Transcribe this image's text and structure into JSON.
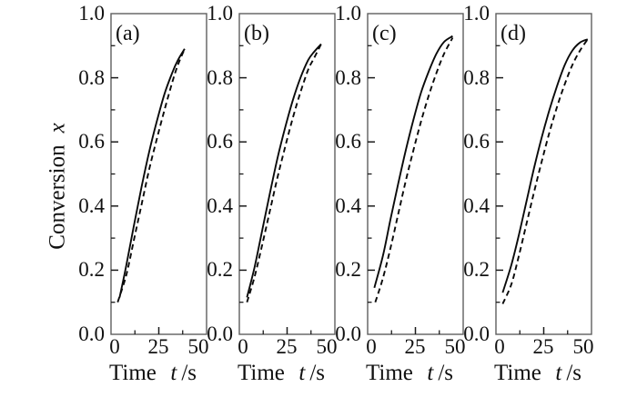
{
  "figure": {
    "ylabel": {
      "text": "Conversion",
      "symbol": "x"
    },
    "xlabel": {
      "text": "Time",
      "symbol": "t",
      "unit": "/s"
    },
    "colors": {
      "curve": "#0a0a0a",
      "spine": "#5f5f5f",
      "tick": "#1a1a1a",
      "text": "#111111",
      "background": "#ffffff"
    }
  },
  "chart_data": [
    {
      "type": "line",
      "label": "(a)",
      "xlabel": "Time t /s",
      "ylabel": "Conversion x",
      "xlim": [
        0,
        50
      ],
      "ylim": [
        0.0,
        1.0
      ],
      "grid": false,
      "legend": "none",
      "x_tick_labels": [
        "0",
        "25",
        "50"
      ],
      "x_major_ticks": [
        0,
        25,
        50
      ],
      "x_minor_ticks": [
        12.5,
        37.5
      ],
      "y_tick_labels": [
        "1.0",
        "0.8",
        "0.6",
        "0.4",
        "0.2",
        "0.0"
      ],
      "y_major_ticks": [
        1.0,
        0.8,
        0.6,
        0.4,
        0.2,
        0.0
      ],
      "y_minor_ticks": [
        0.1,
        0.3,
        0.5,
        0.7,
        0.9
      ],
      "series": [
        {
          "name": "solid",
          "style": "solid",
          "points": [
            [
              4.5,
              0.115
            ],
            [
              8,
              0.215
            ],
            [
              12,
              0.34
            ],
            [
              16,
              0.46
            ],
            [
              20,
              0.57
            ],
            [
              24,
              0.665
            ],
            [
              28,
              0.75
            ],
            [
              32,
              0.815
            ],
            [
              35,
              0.855
            ],
            [
              38.5,
              0.89
            ]
          ]
        },
        {
          "name": "dashed",
          "style": "dashed",
          "points": [
            [
              3.5,
              0.1
            ],
            [
              8,
              0.185
            ],
            [
              12,
              0.295
            ],
            [
              16,
              0.405
            ],
            [
              20,
              0.515
            ],
            [
              24,
              0.61
            ],
            [
              28,
              0.7
            ],
            [
              32,
              0.785
            ],
            [
              35,
              0.84
            ],
            [
              38.5,
              0.89
            ]
          ]
        }
      ]
    },
    {
      "type": "line",
      "label": "(b)",
      "xlabel": "Time t /s",
      "ylabel": "Conversion x",
      "xlim": [
        0,
        50
      ],
      "ylim": [
        0.0,
        1.0
      ],
      "grid": false,
      "legend": "none",
      "x_tick_labels": [
        "0",
        "25",
        "50"
      ],
      "x_major_ticks": [
        0,
        25,
        50
      ],
      "x_minor_ticks": [
        12.5,
        37.5
      ],
      "y_tick_labels": [
        "1.0",
        "0.8",
        "0.6",
        "0.4",
        "0.2",
        "0.0"
      ],
      "y_major_ticks": [
        1.0,
        0.8,
        0.6,
        0.4,
        0.2,
        0.0
      ],
      "y_minor_ticks": [
        0.1,
        0.3,
        0.5,
        0.7,
        0.9
      ],
      "series": [
        {
          "name": "solid",
          "style": "solid",
          "points": [
            [
              4,
              0.115
            ],
            [
              8,
              0.21
            ],
            [
              12,
              0.325
            ],
            [
              16,
              0.44
            ],
            [
              20,
              0.55
            ],
            [
              24,
              0.645
            ],
            [
              28,
              0.73
            ],
            [
              32,
              0.8
            ],
            [
              36,
              0.855
            ],
            [
              39,
              0.88
            ],
            [
              42.8,
              0.905
            ]
          ]
        },
        {
          "name": "dashed",
          "style": "dashed",
          "points": [
            [
              4,
              0.1
            ],
            [
              8,
              0.18
            ],
            [
              12,
              0.28
            ],
            [
              16,
              0.385
            ],
            [
              20,
              0.49
            ],
            [
              24,
              0.585
            ],
            [
              28,
              0.675
            ],
            [
              32,
              0.755
            ],
            [
              36,
              0.825
            ],
            [
              39,
              0.86
            ],
            [
              42.8,
              0.905
            ]
          ]
        }
      ]
    },
    {
      "type": "line",
      "label": "(c)",
      "xlabel": "Time t /s",
      "ylabel": "Conversion x",
      "xlim": [
        0,
        50
      ],
      "ylim": [
        0.0,
        1.0
      ],
      "grid": false,
      "legend": "none",
      "x_tick_labels": [
        "0",
        "25",
        "50"
      ],
      "x_major_ticks": [
        0,
        25,
        50
      ],
      "x_minor_ticks": [
        12.5,
        37.5
      ],
      "y_tick_labels": [
        "1.0",
        "0.8",
        "0.6",
        "0.4",
        "0.2",
        "0.0"
      ],
      "y_major_ticks": [
        1.0,
        0.8,
        0.6,
        0.4,
        0.2,
        0.0
      ],
      "y_minor_ticks": [
        0.1,
        0.3,
        0.5,
        0.7,
        0.9
      ],
      "series": [
        {
          "name": "solid",
          "style": "solid",
          "points": [
            [
              3.5,
              0.145
            ],
            [
              8,
              0.245
            ],
            [
              12,
              0.36
            ],
            [
              16,
              0.47
            ],
            [
              20,
              0.575
            ],
            [
              24,
              0.67
            ],
            [
              28,
              0.755
            ],
            [
              32,
              0.82
            ],
            [
              36,
              0.875
            ],
            [
              40,
              0.912
            ],
            [
              44.5,
              0.93
            ]
          ]
        },
        {
          "name": "dashed",
          "style": "dashed",
          "points": [
            [
              4,
              0.1
            ],
            [
              8,
              0.175
            ],
            [
              12,
              0.27
            ],
            [
              16,
              0.375
            ],
            [
              20,
              0.48
            ],
            [
              24,
              0.575
            ],
            [
              28,
              0.665
            ],
            [
              32,
              0.745
            ],
            [
              36,
              0.815
            ],
            [
              40,
              0.875
            ],
            [
              44.5,
              0.925
            ]
          ]
        }
      ]
    },
    {
      "type": "line",
      "label": "(d)",
      "xlabel": "Time t /s",
      "ylabel": "Conversion x",
      "xlim": [
        0,
        50
      ],
      "ylim": [
        0.0,
        1.0
      ],
      "grid": false,
      "legend": "none",
      "x_tick_labels": [
        "0",
        "25",
        "50"
      ],
      "x_major_ticks": [
        0,
        25,
        50
      ],
      "x_minor_ticks": [
        12.5,
        37.5
      ],
      "y_tick_labels": [
        "1.0",
        "0.8",
        "0.6",
        "0.4",
        "0.2",
        "0.0"
      ],
      "y_major_ticks": [
        1.0,
        0.8,
        0.6,
        0.4,
        0.2,
        0.0
      ],
      "y_minor_ticks": [
        0.1,
        0.3,
        0.5,
        0.7,
        0.9
      ],
      "series": [
        {
          "name": "solid",
          "style": "solid",
          "points": [
            [
              3.5,
              0.13
            ],
            [
              8,
              0.215
            ],
            [
              12,
              0.31
            ],
            [
              16,
              0.415
            ],
            [
              20,
              0.52
            ],
            [
              24,
              0.615
            ],
            [
              28,
              0.7
            ],
            [
              32,
              0.775
            ],
            [
              36,
              0.84
            ],
            [
              40,
              0.885
            ],
            [
              44,
              0.91
            ],
            [
              48,
              0.92
            ]
          ]
        },
        {
          "name": "dashed",
          "style": "dashed",
          "points": [
            [
              3.5,
              0.095
            ],
            [
              8,
              0.155
            ],
            [
              12,
              0.245
            ],
            [
              16,
              0.345
            ],
            [
              20,
              0.445
            ],
            [
              24,
              0.54
            ],
            [
              28,
              0.63
            ],
            [
              32,
              0.71
            ],
            [
              36,
              0.78
            ],
            [
              40,
              0.84
            ],
            [
              44,
              0.885
            ],
            [
              48,
              0.92
            ]
          ]
        }
      ]
    }
  ]
}
